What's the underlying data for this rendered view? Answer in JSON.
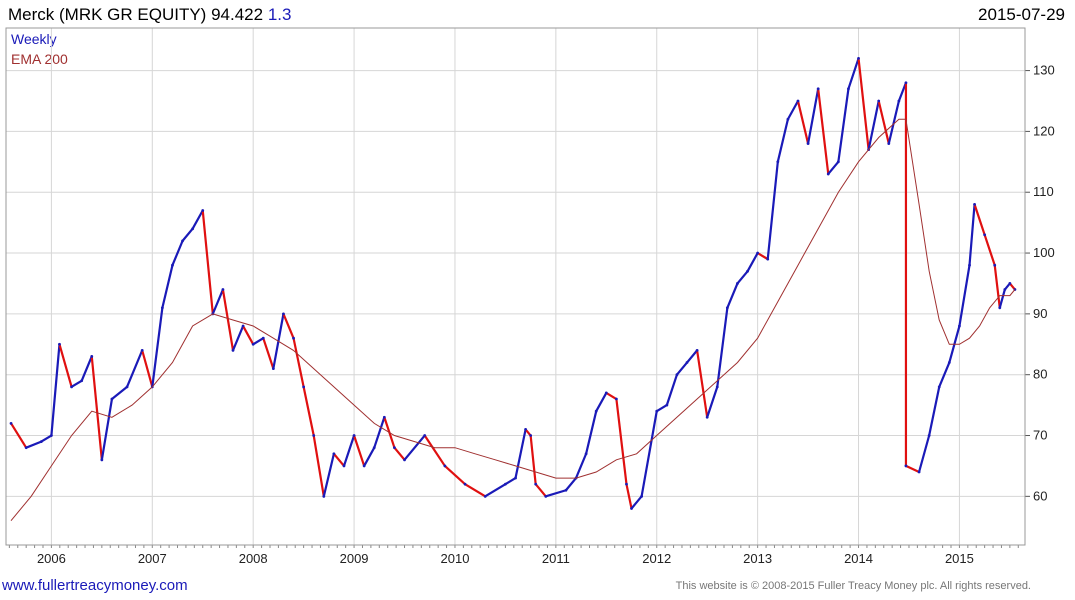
{
  "header": {
    "name": "Merck (MRK GR EQUITY)",
    "price": "94.422",
    "change": "1.3",
    "date": "2015-07-29"
  },
  "legend": {
    "weekly": "Weekly",
    "ema": "EMA 200"
  },
  "footer": {
    "site": "www.fullertreacymoney.com",
    "copyright": "This website is © 2008-2015 Fuller Treacy Money plc. All rights reserved."
  },
  "colors": {
    "up": "#1a1ab8",
    "down": "#e01010",
    "ema": "#a03030",
    "grid": "#d6d6d6"
  },
  "chart_data": {
    "type": "line",
    "ylim": [
      52,
      137
    ],
    "xlim": [
      2005.55,
      2015.65
    ],
    "yticks": [
      60,
      70,
      80,
      90,
      100,
      110,
      120,
      130
    ],
    "xticks": [
      "2006",
      "2007",
      "2008",
      "2009",
      "2010",
      "2011",
      "2012",
      "2013",
      "2014",
      "2015"
    ],
    "grid": true,
    "series": [
      {
        "name": "Weekly",
        "x": [
          2005.6,
          2005.75,
          2005.9,
          2006.0,
          2006.08,
          2006.2,
          2006.3,
          2006.4,
          2006.5,
          2006.6,
          2006.75,
          2006.9,
          2007.0,
          2007.1,
          2007.2,
          2007.3,
          2007.4,
          2007.5,
          2007.6,
          2007.7,
          2007.8,
          2007.9,
          2008.0,
          2008.1,
          2008.2,
          2008.3,
          2008.4,
          2008.5,
          2008.6,
          2008.7,
          2008.8,
          2008.9,
          2009.0,
          2009.1,
          2009.2,
          2009.3,
          2009.4,
          2009.5,
          2009.7,
          2009.9,
          2010.1,
          2010.3,
          2010.5,
          2010.6,
          2010.7,
          2010.75,
          2010.8,
          2010.9,
          2011.1,
          2011.2,
          2011.3,
          2011.4,
          2011.5,
          2011.6,
          2011.7,
          2011.75,
          2011.85,
          2012.0,
          2012.1,
          2012.2,
          2012.3,
          2012.4,
          2012.5,
          2012.6,
          2012.7,
          2012.8,
          2012.9,
          2013.0,
          2013.1,
          2013.2,
          2013.3,
          2013.4,
          2013.5,
          2013.6,
          2013.7,
          2013.8,
          2013.9,
          2014.0,
          2014.1,
          2014.2,
          2014.3,
          2014.4,
          2014.47,
          2014.47,
          2014.6,
          2014.7,
          2014.8,
          2014.9,
          2015.0,
          2015.1,
          2015.15,
          2015.25,
          2015.35,
          2015.4,
          2015.45,
          2015.5,
          2015.55
        ],
        "values": [
          72,
          68,
          69,
          70,
          85,
          78,
          79,
          83,
          66,
          76,
          78,
          84,
          78,
          91,
          98,
          102,
          104,
          107,
          90,
          94,
          84,
          88,
          85,
          86,
          81,
          90,
          86,
          78,
          70,
          60,
          67,
          65,
          70,
          65,
          68,
          73,
          68,
          66,
          70,
          65,
          62,
          60,
          62,
          63,
          71,
          70,
          62,
          60,
          61,
          63,
          67,
          74,
          77,
          76,
          62,
          58,
          60,
          74,
          75,
          80,
          82,
          84,
          73,
          78,
          91,
          95,
          97,
          100,
          99,
          115,
          122,
          125,
          118,
          127,
          113,
          115,
          127,
          132,
          117,
          125,
          118,
          125,
          128,
          65,
          64,
          70,
          78,
          82,
          88,
          98,
          108,
          103,
          98,
          91,
          94,
          95,
          94
        ]
      },
      {
        "name": "EMA 200",
        "x": [
          2005.6,
          2005.8,
          2006.0,
          2006.2,
          2006.4,
          2006.6,
          2006.8,
          2007.0,
          2007.2,
          2007.4,
          2007.6,
          2007.8,
          2008.0,
          2008.2,
          2008.4,
          2008.6,
          2008.8,
          2009.0,
          2009.2,
          2009.4,
          2009.6,
          2009.8,
          2010.0,
          2010.2,
          2010.4,
          2010.6,
          2010.8,
          2011.0,
          2011.2,
          2011.4,
          2011.6,
          2011.8,
          2012.0,
          2012.2,
          2012.4,
          2012.6,
          2012.8,
          2013.0,
          2013.2,
          2013.4,
          2013.6,
          2013.8,
          2014.0,
          2014.2,
          2014.4,
          2014.47,
          2014.6,
          2014.7,
          2014.8,
          2014.9,
          2015.0,
          2015.1,
          2015.2,
          2015.3,
          2015.4,
          2015.5,
          2015.55
        ],
        "values": [
          56,
          60,
          65,
          70,
          74,
          73,
          75,
          78,
          82,
          88,
          90,
          89,
          88,
          86,
          84,
          81,
          78,
          75,
          72,
          70,
          69,
          68,
          68,
          67,
          66,
          65,
          64,
          63,
          63,
          64,
          66,
          67,
          70,
          73,
          76,
          79,
          82,
          86,
          92,
          98,
          104,
          110,
          115,
          119,
          122,
          122,
          108,
          97,
          89,
          85,
          85,
          86,
          88,
          91,
          93,
          93,
          94
        ]
      }
    ]
  }
}
